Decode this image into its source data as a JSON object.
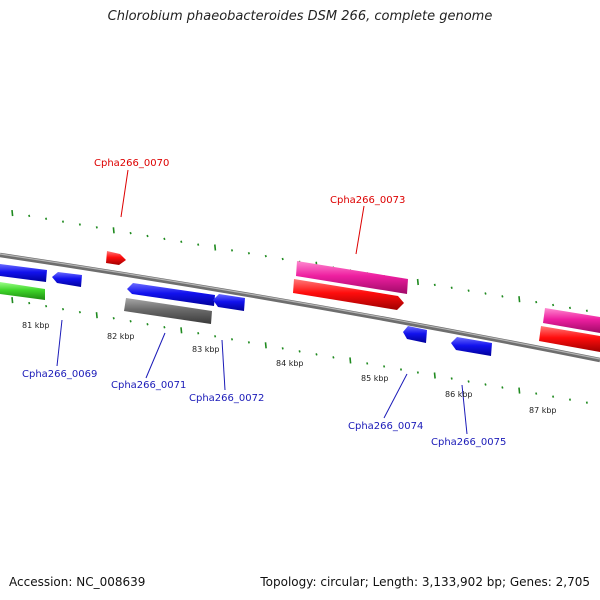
{
  "title": "Chlorobium phaeobacteroides DSM 266, complete genome",
  "footer": {
    "accession": "Accession: NC_008639",
    "topology": "Topology: circular; Length: 3,133,902 bp; Genes: 2,705"
  },
  "colors": {
    "backbone": "#8a8a8a",
    "ticks": "#1f8a1f",
    "label_red": "#dd0000",
    "label_blue": "#1a1ab8"
  },
  "scale_labels": [
    "81 kbp",
    "82 kbp",
    "83 kbp",
    "84 kbp",
    "85 kbp",
    "86 kbp",
    "87 kbp"
  ],
  "gene_labels": [
    {
      "text": "Cpha266_0070",
      "color": "red"
    },
    {
      "text": "Cpha266_0073",
      "color": "red"
    },
    {
      "text": "Cpha266_0069",
      "color": "blue"
    },
    {
      "text": "Cpha266_0071",
      "color": "blue"
    },
    {
      "text": "Cpha266_0072",
      "color": "blue"
    },
    {
      "text": "Cpha266_0074",
      "color": "blue"
    },
    {
      "text": "Cpha266_0075",
      "color": "blue"
    }
  ]
}
